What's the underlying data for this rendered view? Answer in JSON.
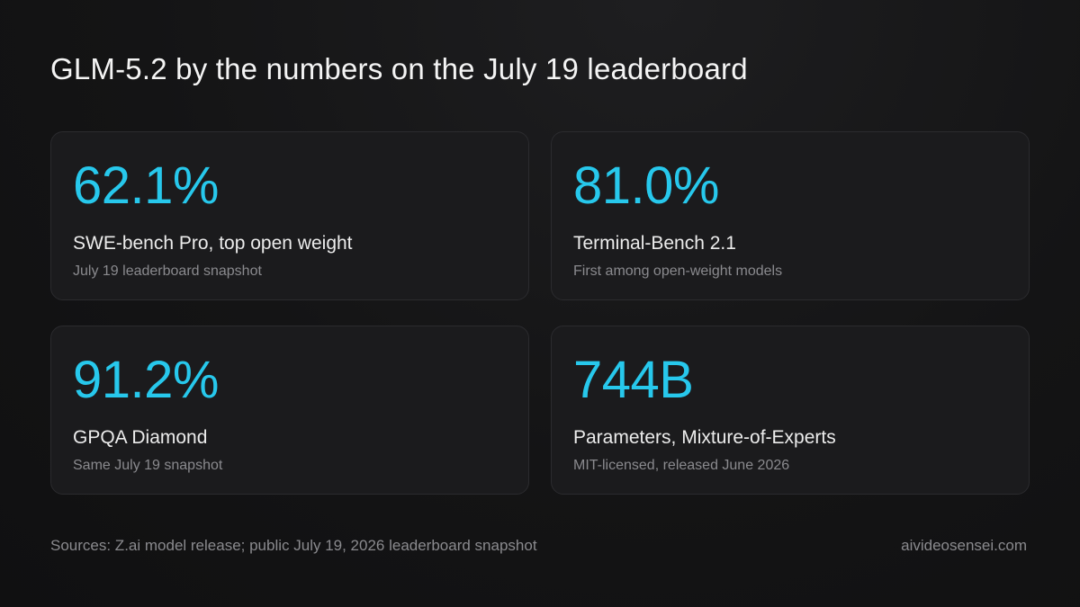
{
  "title": "GLM-5.2 by the numbers on the July 19 leaderboard",
  "accent_color": "#27c8ec",
  "cards": [
    {
      "value": "62.1%",
      "label": "SWE-bench Pro, top open weight",
      "note": "July 19 leaderboard snapshot"
    },
    {
      "value": "81.0%",
      "label": "Terminal-Bench 2.1",
      "note": "First among open-weight models"
    },
    {
      "value": "91.2%",
      "label": "GPQA Diamond",
      "note": "Same July 19 snapshot"
    },
    {
      "value": "744B",
      "label": "Parameters, Mixture-of-Experts",
      "note": "MIT-licensed, released June 2026"
    }
  ],
  "footer": {
    "sources": "Sources: Z.ai model release; public July 19, 2026 leaderboard snapshot",
    "site": "aivideosensei.com"
  }
}
